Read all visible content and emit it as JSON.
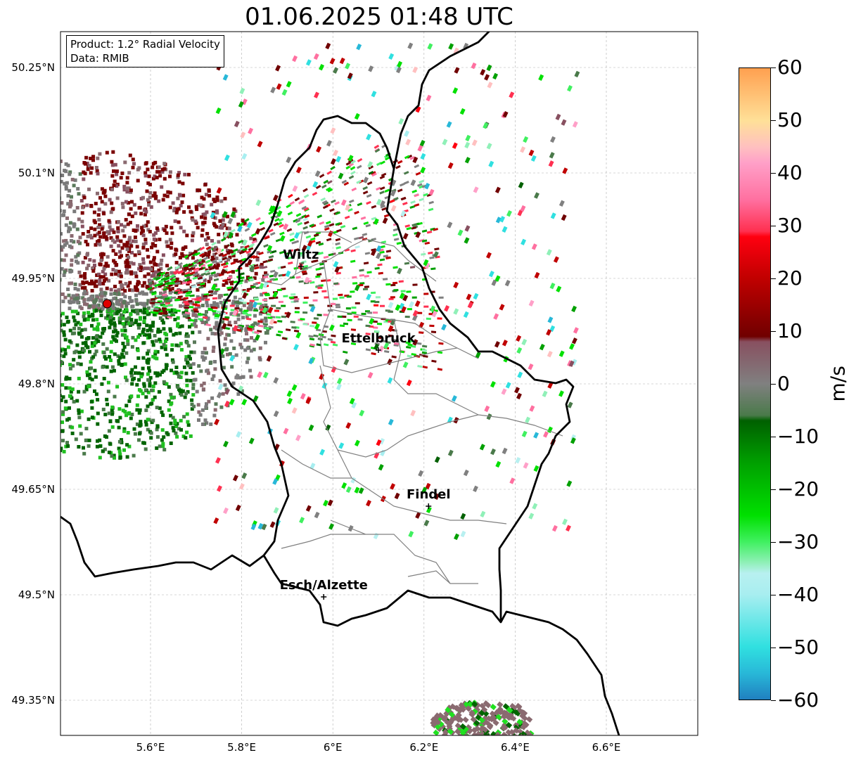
{
  "title": "01.06.2025 01:48 UTC",
  "info": {
    "product": "Product: 1.2° Radial Velocity",
    "data_source": "Data: RMIB"
  },
  "axes": {
    "lat_labels": [
      "50.25°N",
      "50.1°N",
      "49.95°N",
      "49.8°N",
      "49.65°N",
      "49.5°N",
      "49.35°N"
    ],
    "lon_labels": [
      "5.6°E",
      "5.8°E",
      "6°E",
      "6.2°E",
      "6.4°E",
      "6.6°E"
    ]
  },
  "cities": [
    {
      "name": "Wiltz",
      "lon": 5.93,
      "lat": 49.967
    },
    {
      "name": "Ettelbruck",
      "lon": 6.1,
      "lat": 49.848
    },
    {
      "name": "Findel",
      "lon": 6.21,
      "lat": 49.626
    },
    {
      "name": "Esch/Alzette",
      "lon": 5.98,
      "lat": 49.497
    }
  ],
  "radar_site": {
    "lon": 5.505,
    "lat": 49.914,
    "color": "#e00000"
  },
  "colorbar": {
    "label": "m/s",
    "min": -60,
    "max": 60,
    "ticks": [
      "60",
      "50",
      "40",
      "30",
      "20",
      "10",
      "0",
      "−10",
      "−20",
      "−30",
      "−40",
      "−50",
      "−60"
    ],
    "stops": [
      {
        "v": -60,
        "c": "#2080c0"
      },
      {
        "v": -55,
        "c": "#28b8d8"
      },
      {
        "v": -50,
        "c": "#30e0e0"
      },
      {
        "v": -40,
        "c": "#a8eef0"
      },
      {
        "v": -36,
        "c": "#b8f0f0"
      },
      {
        "v": -34,
        "c": "#90f0b8"
      },
      {
        "v": -30,
        "c": "#40f060"
      },
      {
        "v": -25,
        "c": "#00e000"
      },
      {
        "v": -15,
        "c": "#00a000"
      },
      {
        "v": -7,
        "c": "#006000"
      },
      {
        "v": -6,
        "c": "#4a7a4a"
      },
      {
        "v": 0,
        "c": "#808080"
      },
      {
        "v": 8,
        "c": "#885060"
      },
      {
        "v": 9,
        "c": "#700000"
      },
      {
        "v": 20,
        "c": "#c00000"
      },
      {
        "v": 28,
        "c": "#ff0010"
      },
      {
        "v": 29,
        "c": "#ff3050"
      },
      {
        "v": 35,
        "c": "#ff70a0"
      },
      {
        "v": 42,
        "c": "#ffa0c8"
      },
      {
        "v": 45,
        "c": "#ffc0c0"
      },
      {
        "v": 50,
        "c": "#ffe098"
      },
      {
        "v": 60,
        "c": "#ffa050"
      }
    ]
  },
  "colors": {
    "border": "#000000",
    "canton": "#808080",
    "grid": "#b0b0b0",
    "velocity_negative_dark": "#006400",
    "velocity_zero": "#7a7a7a",
    "velocity_positive_dark": "#7a0000"
  }
}
